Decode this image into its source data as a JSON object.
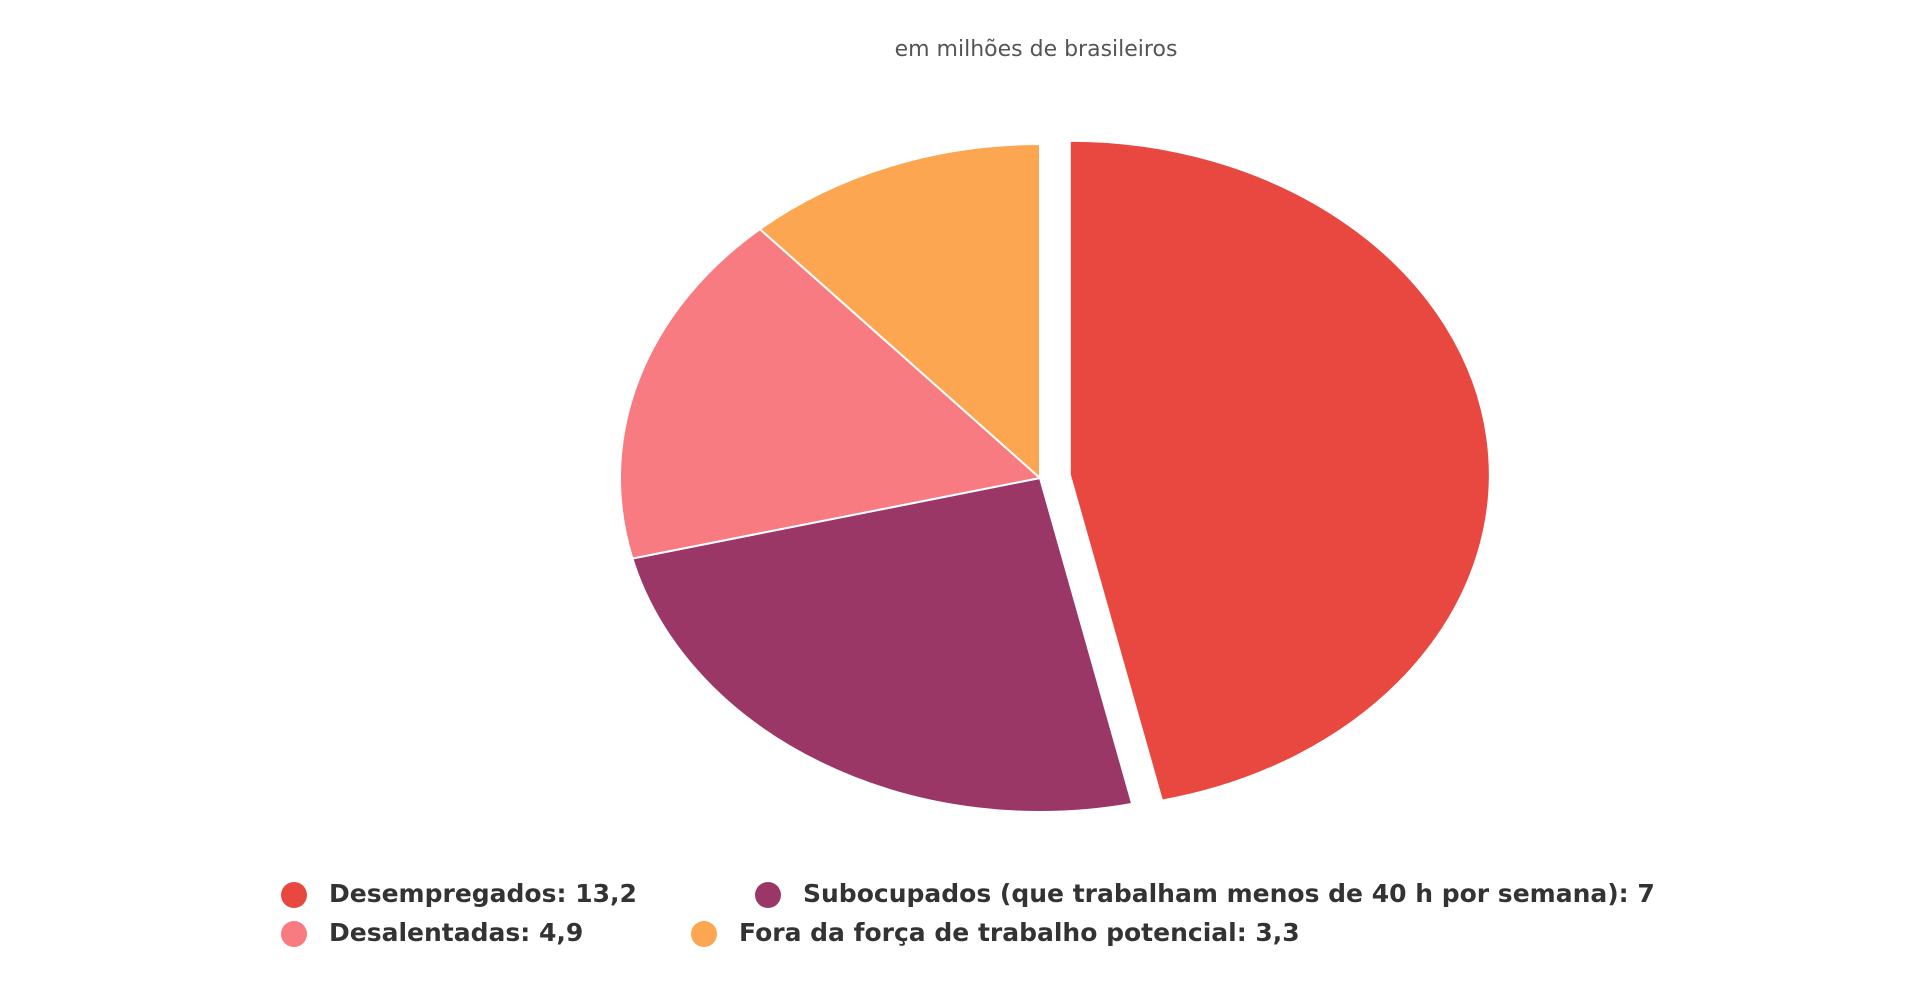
{
  "chart_data": {
    "type": "pie",
    "subtitle": "em milhões de brasileiros",
    "categories": [
      "Desempregados: 13,2",
      "Subocupados (que trabalham menos de 40 h por semana): 7",
      "Desalentadas: 4,9",
      "Fora da força de trabalho potencial: 3,3"
    ],
    "values": [
      13.2,
      7,
      4.9,
      3.3
    ],
    "colors": [
      "#e8483f",
      "#9b3766",
      "#f77b80",
      "#fca651"
    ],
    "exploded": [
      true,
      false,
      false,
      false
    ]
  }
}
